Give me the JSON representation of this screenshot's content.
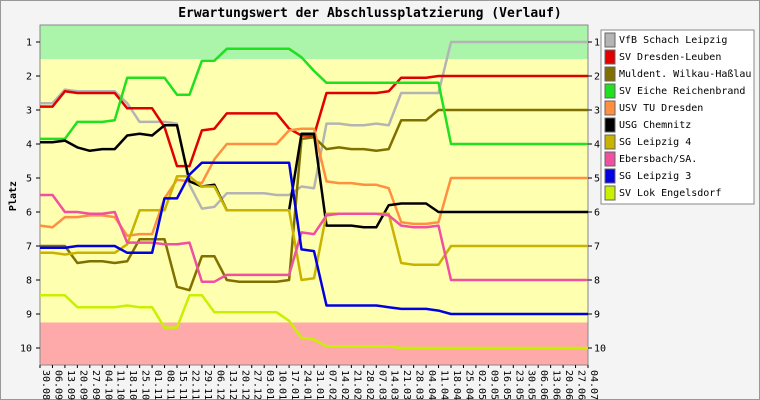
{
  "chart_data": {
    "type": "line",
    "title": "Erwartungswert der Abschlussplatzierung (Verlauf)",
    "ylabel": "Platz",
    "x": [
      "30.08",
      "06.09",
      "13.09",
      "20.09",
      "27.09",
      "04.10",
      "11.10",
      "18.10",
      "25.10",
      "01.11",
      "08.11",
      "15.11",
      "22.11",
      "29.11",
      "06.12",
      "13.12",
      "20.12",
      "27.12",
      "03.01",
      "10.01",
      "17.01",
      "24.01",
      "31.01",
      "07.02",
      "14.02",
      "21.02",
      "28.02",
      "07.03",
      "14.03",
      "21.03",
      "28.03",
      "04.04",
      "11.04",
      "18.04",
      "25.04",
      "02.05",
      "09.05",
      "16.05",
      "23.05",
      "30.05",
      "06.06",
      "13.06",
      "20.06",
      "27.06",
      "04.07"
    ],
    "ylim": [
      10.5,
      0.5
    ],
    "yticks": [
      1,
      2,
      3,
      4,
      5,
      6,
      7,
      8,
      9,
      10
    ],
    "bands": [
      {
        "from": 0.5,
        "to": 1.5,
        "color": "#aaf5aa"
      },
      {
        "from": 1.5,
        "to": 9.25,
        "color": "#ffffb0"
      },
      {
        "from": 9.25,
        "to": 10.5,
        "color": "#ffaaaa"
      }
    ],
    "series": [
      {
        "name": "VfB Schach Leipzig",
        "color": "#b4b4b4",
        "values": [
          2.8,
          2.8,
          2.4,
          2.45,
          2.45,
          2.45,
          2.45,
          2.8,
          3.35,
          3.35,
          3.35,
          3.4,
          5.2,
          5.9,
          5.85,
          5.45,
          5.45,
          5.45,
          5.45,
          5.5,
          5.5,
          5.25,
          5.3,
          3.4,
          3.4,
          3.45,
          3.45,
          3.4,
          3.45,
          2.5,
          2.5,
          2.5,
          2.5,
          1,
          1,
          1,
          1,
          1,
          1,
          1,
          1,
          1,
          1,
          1,
          1
        ]
      },
      {
        "name": "SV Dresden-Leuben",
        "color": "#e00000",
        "values": [
          2.9,
          2.9,
          2.45,
          2.5,
          2.5,
          2.5,
          2.5,
          2.95,
          2.95,
          2.95,
          3.5,
          4.65,
          4.65,
          3.6,
          3.55,
          3.1,
          3.1,
          3.1,
          3.1,
          3.1,
          3.55,
          3.75,
          3.75,
          2.5,
          2.5,
          2.5,
          2.5,
          2.5,
          2.45,
          2.05,
          2.05,
          2.05,
          2,
          2,
          2,
          2,
          2,
          2,
          2,
          2,
          2,
          2,
          2,
          2,
          2
        ]
      },
      {
        "name": "Muldent. Wilkau-Haßlau",
        "color": "#807000",
        "values": [
          7,
          7,
          7,
          7.5,
          7.45,
          7.45,
          7.5,
          7.45,
          6.8,
          6.8,
          6.8,
          8.2,
          8.3,
          7.3,
          7.3,
          8,
          8.05,
          8.05,
          8.05,
          8.05,
          8,
          3.85,
          3.8,
          4.15,
          4.1,
          4.15,
          4.15,
          4.2,
          4.15,
          3.3,
          3.3,
          3.3,
          3,
          3,
          3,
          3,
          3,
          3,
          3,
          3,
          3,
          3,
          3,
          3,
          3
        ]
      },
      {
        "name": "SV Eiche Reichenbrand",
        "color": "#20e020",
        "values": [
          3.85,
          3.85,
          3.85,
          3.35,
          3.35,
          3.35,
          3.3,
          2.05,
          2.05,
          2.05,
          2.05,
          2.55,
          2.55,
          1.55,
          1.55,
          1.2,
          1.2,
          1.2,
          1.2,
          1.2,
          1.2,
          1.45,
          1.85,
          2.2,
          2.2,
          2.2,
          2.2,
          2.2,
          2.2,
          2.2,
          2.2,
          2.2,
          2.2,
          4,
          4,
          4,
          4,
          4,
          4,
          4,
          4,
          4,
          4,
          4,
          4
        ]
      },
      {
        "name": "USV TU Dresden",
        "color": "#ff9040",
        "values": [
          6.4,
          6.45,
          6.15,
          6.15,
          6.1,
          6.1,
          6.15,
          6.7,
          6.65,
          6.65,
          5.6,
          5.05,
          5.1,
          5.15,
          4.45,
          4,
          4,
          4,
          4,
          4,
          3.6,
          3.55,
          3.55,
          5.1,
          5.15,
          5.15,
          5.2,
          5.2,
          5.3,
          6.3,
          6.35,
          6.35,
          6.3,
          5,
          5,
          5,
          5,
          5,
          5,
          5,
          5,
          5,
          5,
          5,
          5
        ]
      },
      {
        "name": "USG Chemnitz",
        "color": "#000000",
        "values": [
          3.95,
          3.95,
          3.9,
          4.1,
          4.2,
          4.15,
          4.15,
          3.75,
          3.7,
          3.75,
          3.45,
          3.45,
          5.1,
          5.25,
          5.2,
          5.95,
          5.95,
          5.95,
          5.95,
          5.95,
          5.95,
          3.7,
          3.7,
          6.4,
          6.4,
          6.4,
          6.45,
          6.45,
          5.8,
          5.75,
          5.75,
          5.75,
          6,
          6,
          6,
          6,
          6,
          6,
          6,
          6,
          6,
          6,
          6,
          6,
          6
        ]
      },
      {
        "name": "SG Leipzig 4",
        "color": "#c8b400",
        "values": [
          7.2,
          7.2,
          7.25,
          7.2,
          7.2,
          7.2,
          7.2,
          6.95,
          5.95,
          5.95,
          5.95,
          4.95,
          4.95,
          5.25,
          5.25,
          5.95,
          5.95,
          5.95,
          5.95,
          5.95,
          5.95,
          8,
          7.95,
          6.05,
          6.05,
          6.05,
          6.05,
          6.05,
          6.05,
          7.5,
          7.55,
          7.55,
          7.55,
          7,
          7,
          7,
          7,
          7,
          7,
          7,
          7,
          7,
          7,
          7,
          7
        ]
      },
      {
        "name": "Ebersbach/SA.",
        "color": "#f050a0",
        "values": [
          5.5,
          5.5,
          6,
          6,
          6.05,
          6.05,
          6,
          6.9,
          6.9,
          6.9,
          6.95,
          6.95,
          6.9,
          8.05,
          8.05,
          7.85,
          7.85,
          7.85,
          7.85,
          7.85,
          7.85,
          6.6,
          6.65,
          6.1,
          6.05,
          6.05,
          6.05,
          6.05,
          6.1,
          6.4,
          6.45,
          6.45,
          6.4,
          8,
          8,
          8,
          8,
          8,
          8,
          8,
          8,
          8,
          8,
          8,
          8
        ]
      },
      {
        "name": "SG Leipzig 3",
        "color": "#0000e0",
        "values": [
          7.05,
          7.05,
          7.05,
          7,
          7,
          7,
          7,
          7.2,
          7.2,
          7.2,
          5.6,
          5.6,
          4.9,
          4.55,
          4.55,
          4.55,
          4.55,
          4.55,
          4.55,
          4.55,
          4.55,
          7.1,
          7.15,
          8.75,
          8.75,
          8.75,
          8.75,
          8.75,
          8.8,
          8.85,
          8.85,
          8.85,
          8.9,
          9,
          9,
          9,
          9,
          9,
          9,
          9,
          9,
          9,
          9,
          9,
          9
        ]
      },
      {
        "name": "SV Lok Engelsdorf",
        "color": "#c8f000",
        "values": [
          8.45,
          8.45,
          8.45,
          8.8,
          8.8,
          8.8,
          8.8,
          8.75,
          8.8,
          8.8,
          9.4,
          9.4,
          8.45,
          8.45,
          8.95,
          8.95,
          8.95,
          8.95,
          8.95,
          8.95,
          9.2,
          9.7,
          9.75,
          9.95,
          9.95,
          9.95,
          9.95,
          9.95,
          9.95,
          10,
          10,
          10,
          10,
          10,
          10,
          10,
          10,
          10,
          10,
          10,
          10,
          10,
          10,
          10,
          10
        ]
      }
    ]
  }
}
